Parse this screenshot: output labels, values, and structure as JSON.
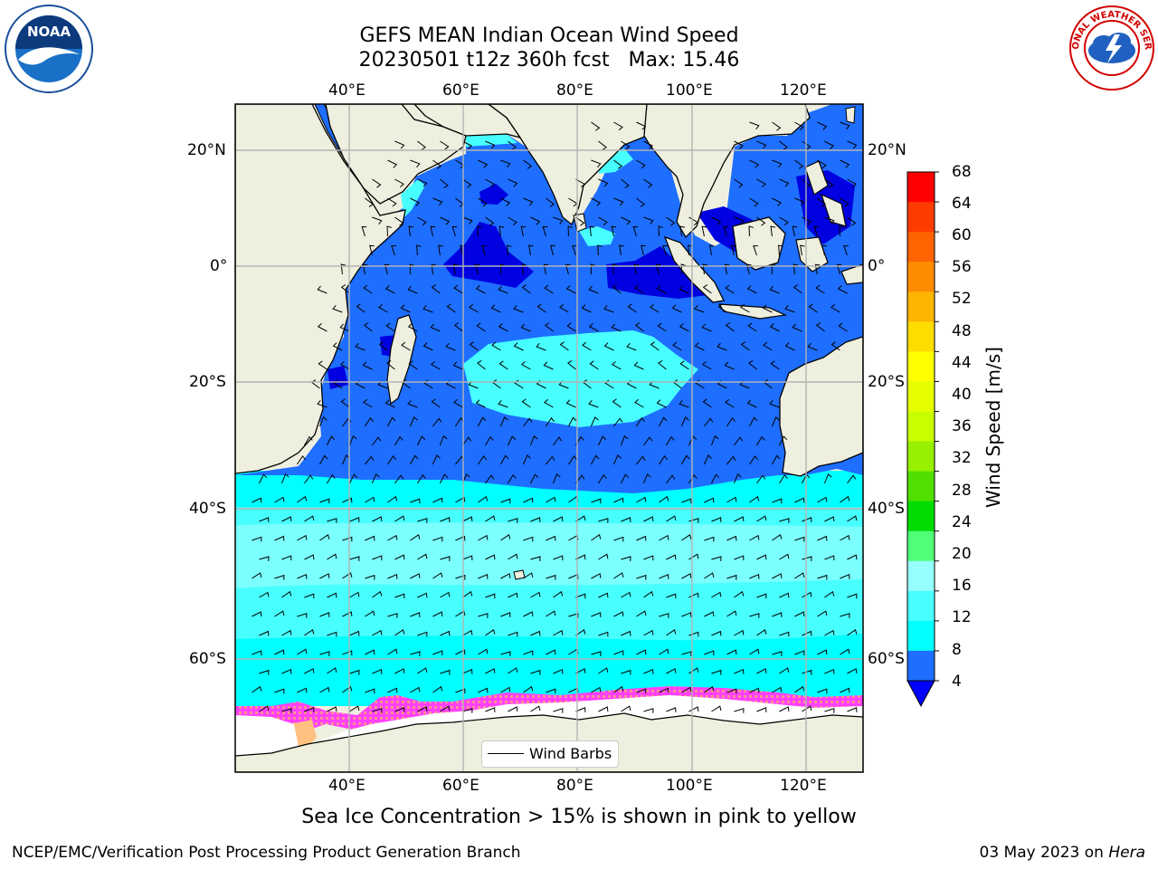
{
  "title": {
    "line1": "GEFS MEAN Indian Ocean Wind Speed",
    "line2": "20230501 t12z 360h fcst   Max: 15.46"
  },
  "map": {
    "lon_labels": [
      "40°E",
      "60°E",
      "80°E",
      "100°E",
      "120°E"
    ],
    "lat_labels": [
      "20°N",
      "0°",
      "20°S",
      "40°S",
      "60°S"
    ],
    "colors": {
      "land": "#efefdf",
      "ocean_4_8": "#1e6eff",
      "ocean_low": "#0000e0",
      "cyan_8_12": "#00ffff",
      "cyan_12_16": "#48ffff",
      "cyan_16_20": "#96ffff",
      "gridline": "#b4b4b4",
      "sea_ice": [
        "#ff40ff",
        "#ff8080",
        "#ffc080"
      ]
    },
    "legend_label": "Wind Barbs"
  },
  "colorbar": {
    "title": "Wind Speed [m/s]",
    "ticks": [
      "68",
      "64",
      "60",
      "56",
      "52",
      "48",
      "44",
      "40",
      "36",
      "32",
      "28",
      "24",
      "20",
      "16",
      "12",
      "8",
      "4"
    ],
    "colors": [
      "#ff0000",
      "#ff3c00",
      "#ff6400",
      "#ff8c00",
      "#ffb400",
      "#ffdc00",
      "#ffff00",
      "#e6ff00",
      "#c8ff00",
      "#96f000",
      "#50e000",
      "#00dc00",
      "#50ff78",
      "#96ffff",
      "#48ffff",
      "#00ffff",
      "#1e6eff"
    ],
    "extend_color": "#0000ff"
  },
  "caption": "Sea Ice Concentration > 15% is shown in pink to yellow",
  "footer": {
    "left": "NCEP/EMC/Verification Post Processing Product Generation Branch",
    "right_date": "03 May 2023 on",
    "right_host": "Hera"
  },
  "logos": {
    "noaa": "NOAA",
    "nws_ring": "NATIONAL WEATHER SERVICE"
  }
}
